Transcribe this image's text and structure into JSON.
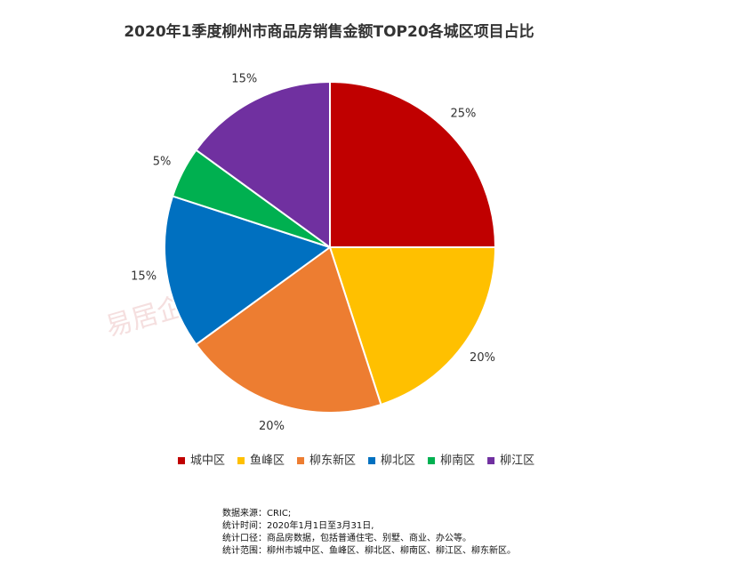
{
  "chart_data": {
    "type": "pie",
    "title": "2020年1季度柳州市商品房销售金额TOP20各城区项目占比",
    "categories": [
      "城中区",
      "鱼峰区",
      "柳东新区",
      "柳北区",
      "柳南区",
      "柳江区"
    ],
    "values": [
      25,
      20,
      20,
      15,
      5,
      15
    ],
    "value_labels": [
      "25%",
      "20%",
      "20%",
      "15%",
      "5%",
      "15%"
    ],
    "colors": [
      "#c00000",
      "#ffc000",
      "#ed7d31",
      "#0070c0",
      "#00b050",
      "#7030a0"
    ],
    "legend": "bottom",
    "watermark": "易居企业集团·克而瑞",
    "notes": [
      "数据来源：CRIC;",
      "统计时间：2020年1月1日至3月31日,",
      "统计口径：商品房数据，包括普通住宅、别墅、商业、办公等。",
      "统计范围：柳州市城中区、鱼峰区、柳北区、柳南区、柳江区、柳东新区。"
    ]
  }
}
